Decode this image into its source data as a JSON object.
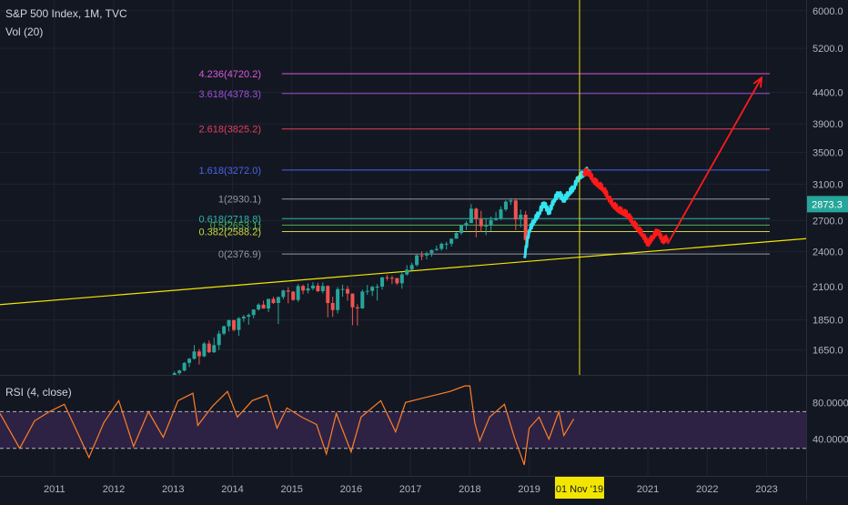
{
  "header": {
    "symbol": "S&P 500 Index, 1M, TVC",
    "indicator": "Vol (20)",
    "rsi_label": "RSI (4, close)"
  },
  "colors": {
    "background": "#131722",
    "bull": "#26a69a",
    "bear": "#ef5350",
    "cyan": "#33e5f0",
    "projection": "#ff1a1a",
    "trendline": "#f2e600",
    "cursor": "#f2e600",
    "rsi_line": "#ff7f27",
    "rsi_band": "#2d2243",
    "axis_text": "#b2b5be",
    "price_badge": "#26a69a"
  },
  "chart_data": [
    {
      "type": "line",
      "title": "S&P 500 Index, 1M, TVC",
      "y_scale": "log",
      "ylim": [
        1500,
        6250
      ],
      "xlim": [
        "2010-02",
        "2023-09"
      ],
      "y_ticks": [
        "6000.0",
        "5200.0",
        "4400.0",
        "3900.0",
        "3500.0",
        "3100.0",
        "2700.0",
        "2400.0",
        "2100.0",
        "1850.0",
        "1650.0"
      ],
      "x_ticks": [
        "2011",
        "2012",
        "2013",
        "2014",
        "2015",
        "2016",
        "2017",
        "2018",
        "2019",
        "2021",
        "2022",
        "2023"
      ],
      "cursor_label": "01 Nov '19",
      "last_price": "2873.3",
      "fib_levels": [
        {
          "label": "4.236(4720.2)",
          "value": 4720.2,
          "color": "#d85ad8"
        },
        {
          "label": "3.618(4378.3)",
          "value": 4378.3,
          "color": "#9c4fd6"
        },
        {
          "label": "2.618(3825.2)",
          "value": 3825.2,
          "color": "#e0405a"
        },
        {
          "label": "1.618(3272.0)",
          "value": 3272.0,
          "color": "#4a62e6"
        },
        {
          "label": "1(2930.1)",
          "value": 2930.1,
          "color": "#9598a1"
        },
        {
          "label": "0.618(2718.8)",
          "value": 2718.8,
          "color": "#2fb5a8"
        },
        {
          "label": "0.5(2653.1)",
          "value": 2653.1,
          "color": "#4caf50"
        },
        {
          "label": "0.382(2588.2)",
          "value": 2588.2,
          "color": "#c9d63a"
        },
        {
          "label": "0(2376.9)",
          "value": 2376.9,
          "color": "#9598a1"
        }
      ],
      "candles": [
        {
          "t": "2013-01",
          "o": 1500,
          "h": 1520,
          "l": 1495,
          "c": 1510
        },
        {
          "t": "2013-02",
          "o": 1510,
          "h": 1530,
          "l": 1500,
          "c": 1525
        },
        {
          "t": "2013-03",
          "o": 1525,
          "h": 1575,
          "l": 1520,
          "c": 1570
        },
        {
          "t": "2013-04",
          "o": 1570,
          "h": 1600,
          "l": 1545,
          "c": 1595
        },
        {
          "t": "2013-05",
          "o": 1595,
          "h": 1680,
          "l": 1590,
          "c": 1640
        },
        {
          "t": "2013-06",
          "o": 1640,
          "h": 1655,
          "l": 1560,
          "c": 1610
        },
        {
          "t": "2013-07",
          "o": 1610,
          "h": 1700,
          "l": 1605,
          "c": 1690
        },
        {
          "t": "2013-08",
          "o": 1690,
          "h": 1710,
          "l": 1630,
          "c": 1635
        },
        {
          "t": "2013-09",
          "o": 1635,
          "h": 1730,
          "l": 1630,
          "c": 1680
        },
        {
          "t": "2013-10",
          "o": 1680,
          "h": 1775,
          "l": 1650,
          "c": 1755
        },
        {
          "t": "2013-11",
          "o": 1755,
          "h": 1810,
          "l": 1745,
          "c": 1805
        },
        {
          "t": "2013-12",
          "o": 1805,
          "h": 1850,
          "l": 1770,
          "c": 1848
        },
        {
          "t": "2014-01",
          "o": 1848,
          "h": 1850,
          "l": 1770,
          "c": 1780
        },
        {
          "t": "2014-02",
          "o": 1780,
          "h": 1870,
          "l": 1740,
          "c": 1860
        },
        {
          "t": "2014-03",
          "o": 1860,
          "h": 1885,
          "l": 1835,
          "c": 1872
        },
        {
          "t": "2014-04",
          "o": 1872,
          "h": 1895,
          "l": 1815,
          "c": 1884
        },
        {
          "t": "2014-05",
          "o": 1884,
          "h": 1925,
          "l": 1860,
          "c": 1924
        },
        {
          "t": "2014-06",
          "o": 1924,
          "h": 1970,
          "l": 1915,
          "c": 1960
        },
        {
          "t": "2014-07",
          "o": 1960,
          "h": 1990,
          "l": 1930,
          "c": 1931
        },
        {
          "t": "2014-08",
          "o": 1931,
          "h": 2005,
          "l": 1905,
          "c": 2003
        },
        {
          "t": "2014-09",
          "o": 2003,
          "h": 2020,
          "l": 1965,
          "c": 1972
        },
        {
          "t": "2014-10",
          "o": 1972,
          "h": 2020,
          "l": 1820,
          "c": 2018
        },
        {
          "t": "2014-11",
          "o": 2018,
          "h": 2075,
          "l": 2000,
          "c": 2068
        },
        {
          "t": "2014-12",
          "o": 2068,
          "h": 2095,
          "l": 1970,
          "c": 2059
        },
        {
          "t": "2015-01",
          "o": 2059,
          "h": 2065,
          "l": 1990,
          "c": 1995
        },
        {
          "t": "2015-02",
          "o": 1995,
          "h": 2120,
          "l": 1980,
          "c": 2104
        },
        {
          "t": "2015-03",
          "o": 2104,
          "h": 2115,
          "l": 2040,
          "c": 2068
        },
        {
          "t": "2015-04",
          "o": 2068,
          "h": 2125,
          "l": 2045,
          "c": 2085
        },
        {
          "t": "2015-05",
          "o": 2085,
          "h": 2135,
          "l": 2070,
          "c": 2107
        },
        {
          "t": "2015-06",
          "o": 2107,
          "h": 2130,
          "l": 2055,
          "c": 2063
        },
        {
          "t": "2015-07",
          "o": 2063,
          "h": 2133,
          "l": 2045,
          "c": 2104
        },
        {
          "t": "2015-08",
          "o": 2104,
          "h": 2110,
          "l": 1867,
          "c": 1972
        },
        {
          "t": "2015-09",
          "o": 1972,
          "h": 2020,
          "l": 1871,
          "c": 1920
        },
        {
          "t": "2015-10",
          "o": 1920,
          "h": 2095,
          "l": 1895,
          "c": 2079
        },
        {
          "t": "2015-11",
          "o": 2079,
          "h": 2115,
          "l": 2020,
          "c": 2080
        },
        {
          "t": "2015-12",
          "o": 2080,
          "h": 2105,
          "l": 1990,
          "c": 2044
        },
        {
          "t": "2016-01",
          "o": 2044,
          "h": 2045,
          "l": 1812,
          "c": 1940
        },
        {
          "t": "2016-02",
          "o": 1940,
          "h": 1963,
          "l": 1810,
          "c": 1932
        },
        {
          "t": "2016-03",
          "o": 1932,
          "h": 2075,
          "l": 1930,
          "c": 2060
        },
        {
          "t": "2016-04",
          "o": 2060,
          "h": 2112,
          "l": 2035,
          "c": 2065
        },
        {
          "t": "2016-05",
          "o": 2065,
          "h": 2105,
          "l": 2025,
          "c": 2097
        },
        {
          "t": "2016-06",
          "o": 2097,
          "h": 2120,
          "l": 1991,
          "c": 2099
        },
        {
          "t": "2016-07",
          "o": 2099,
          "h": 2178,
          "l": 2075,
          "c": 2174
        },
        {
          "t": "2016-08",
          "o": 2174,
          "h": 2195,
          "l": 2147,
          "c": 2171
        },
        {
          "t": "2016-09",
          "o": 2171,
          "h": 2188,
          "l": 2120,
          "c": 2168
        },
        {
          "t": "2016-10",
          "o": 2168,
          "h": 2170,
          "l": 2113,
          "c": 2126
        },
        {
          "t": "2016-11",
          "o": 2126,
          "h": 2215,
          "l": 2083,
          "c": 2199
        },
        {
          "t": "2016-12",
          "o": 2199,
          "h": 2278,
          "l": 2187,
          "c": 2239
        },
        {
          "t": "2017-01",
          "o": 2239,
          "h": 2300,
          "l": 2233,
          "c": 2279
        },
        {
          "t": "2017-02",
          "o": 2279,
          "h": 2372,
          "l": 2267,
          "c": 2364
        },
        {
          "t": "2017-03",
          "o": 2364,
          "h": 2400,
          "l": 2322,
          "c": 2363
        },
        {
          "t": "2017-04",
          "o": 2363,
          "h": 2398,
          "l": 2328,
          "c": 2384
        },
        {
          "t": "2017-05",
          "o": 2384,
          "h": 2418,
          "l": 2352,
          "c": 2412
        },
        {
          "t": "2017-06",
          "o": 2412,
          "h": 2454,
          "l": 2405,
          "c": 2423
        },
        {
          "t": "2017-07",
          "o": 2423,
          "h": 2484,
          "l": 2407,
          "c": 2470
        },
        {
          "t": "2017-08",
          "o": 2470,
          "h": 2490,
          "l": 2417,
          "c": 2472
        },
        {
          "t": "2017-09",
          "o": 2472,
          "h": 2520,
          "l": 2446,
          "c": 2519
        },
        {
          "t": "2017-10",
          "o": 2519,
          "h": 2582,
          "l": 2520,
          "c": 2575
        },
        {
          "t": "2017-11",
          "o": 2575,
          "h": 2658,
          "l": 2557,
          "c": 2648
        },
        {
          "t": "2017-12",
          "o": 2648,
          "h": 2695,
          "l": 2605,
          "c": 2674
        },
        {
          "t": "2018-01",
          "o": 2674,
          "h": 2873,
          "l": 2682,
          "c": 2824
        },
        {
          "t": "2018-02",
          "o": 2824,
          "h": 2835,
          "l": 2533,
          "c": 2714
        },
        {
          "t": "2018-03",
          "o": 2714,
          "h": 2801,
          "l": 2585,
          "c": 2641
        },
        {
          "t": "2018-04",
          "o": 2641,
          "h": 2718,
          "l": 2553,
          "c": 2648
        },
        {
          "t": "2018-05",
          "o": 2648,
          "h": 2742,
          "l": 2594,
          "c": 2705
        },
        {
          "t": "2018-06",
          "o": 2705,
          "h": 2791,
          "l": 2698,
          "c": 2718
        },
        {
          "t": "2018-07",
          "o": 2718,
          "h": 2848,
          "l": 2704,
          "c": 2816
        },
        {
          "t": "2018-08",
          "o": 2816,
          "h": 2916,
          "l": 2796,
          "c": 2901
        },
        {
          "t": "2018-09",
          "o": 2901,
          "h": 2940,
          "l": 2864,
          "c": 2914
        },
        {
          "t": "2018-10",
          "o": 2914,
          "h": 2939,
          "l": 2603,
          "c": 2711
        },
        {
          "t": "2018-11",
          "o": 2711,
          "h": 2815,
          "l": 2631,
          "c": 2760
        },
        {
          "t": "2018-12",
          "o": 2760,
          "h": 2800,
          "l": 2346,
          "c": 2507
        }
      ],
      "cyan_path": [
        [
          "2018-12",
          2340
        ],
        [
          "2019-01",
          2600
        ],
        [
          "2019-02",
          2700
        ],
        [
          "2019-03",
          2780
        ],
        [
          "2019-04",
          2890
        ],
        [
          "2019-05",
          2780
        ],
        [
          "2019-06",
          2920
        ],
        [
          "2019-07",
          3000
        ],
        [
          "2019-08",
          2920
        ],
        [
          "2019-09",
          3000
        ],
        [
          "2019-10",
          3060
        ],
        [
          "2019-11",
          3190
        ],
        [
          "2019-12",
          3230
        ],
        [
          "2020-01",
          3280
        ]
      ],
      "red_path": [
        [
          "2019-12",
          3240
        ],
        [
          "2020-01",
          3250
        ],
        [
          "2020-02",
          3150
        ],
        [
          "2020-03",
          3100
        ],
        [
          "2020-04",
          3050
        ],
        [
          "2020-05",
          2950
        ],
        [
          "2020-06",
          2870
        ],
        [
          "2020-07",
          2820
        ],
        [
          "2020-08",
          2790
        ],
        [
          "2020-09",
          2760
        ],
        [
          "2020-10",
          2680
        ],
        [
          "2020-11",
          2620
        ],
        [
          "2020-12",
          2560
        ],
        [
          "2021-01",
          2470
        ],
        [
          "2021-02",
          2540
        ],
        [
          "2021-03",
          2600
        ],
        [
          "2021-04",
          2500
        ],
        [
          "2021-05",
          2530
        ]
      ],
      "projection_arrow": [
        [
          "2021-05",
          2470
        ],
        [
          "2022-12",
          4650
        ]
      ],
      "trendline": [
        [
          "2010-02",
          1960
        ],
        [
          "2023-09",
          2520
        ]
      ]
    },
    {
      "type": "line",
      "title": "RSI (4, close)",
      "ylim": [
        0,
        110
      ],
      "y_ticks": [
        "80.0000",
        "40.0000"
      ],
      "bands": [
        30,
        70
      ],
      "series": [
        {
          "values": [
            [
              "2010-02",
              68
            ],
            [
              "2010-06",
              30
            ],
            [
              "2010-09",
              60
            ],
            [
              "2010-12",
              70
            ],
            [
              "2011-03",
              78
            ],
            [
              "2011-05",
              55
            ],
            [
              "2011-08",
              20
            ],
            [
              "2011-11",
              58
            ],
            [
              "2012-02",
              82
            ],
            [
              "2012-05",
              32
            ],
            [
              "2012-08",
              70
            ],
            [
              "2012-11",
              42
            ],
            [
              "2013-02",
              82
            ],
            [
              "2013-05",
              90
            ],
            [
              "2013-06",
              55
            ],
            [
              "2013-09",
              76
            ],
            [
              "2013-12",
              92
            ],
            [
              "2014-02",
              64
            ],
            [
              "2014-05",
              82
            ],
            [
              "2014-08",
              88
            ],
            [
              "2014-10",
              52
            ],
            [
              "2014-12",
              74
            ],
            [
              "2015-03",
              64
            ],
            [
              "2015-06",
              56
            ],
            [
              "2015-08",
              24
            ],
            [
              "2015-10",
              68
            ],
            [
              "2016-01",
              26
            ],
            [
              "2016-03",
              64
            ],
            [
              "2016-07",
              82
            ],
            [
              "2016-10",
              48
            ],
            [
              "2016-12",
              80
            ],
            [
              "2017-03",
              84
            ],
            [
              "2017-06",
              88
            ],
            [
              "2017-09",
              92
            ],
            [
              "2017-12",
              98
            ],
            [
              "2018-01",
              98
            ],
            [
              "2018-02",
              58
            ],
            [
              "2018-03",
              38
            ],
            [
              "2018-05",
              64
            ],
            [
              "2018-08",
              78
            ],
            [
              "2018-10",
              42
            ],
            [
              "2018-12",
              12
            ],
            [
              "2019-01",
              52
            ],
            [
              "2019-03",
              64
            ],
            [
              "2019-05",
              40
            ],
            [
              "2019-07",
              70
            ],
            [
              "2019-08",
              44
            ],
            [
              "2019-10",
              62
            ]
          ]
        }
      ]
    }
  ]
}
